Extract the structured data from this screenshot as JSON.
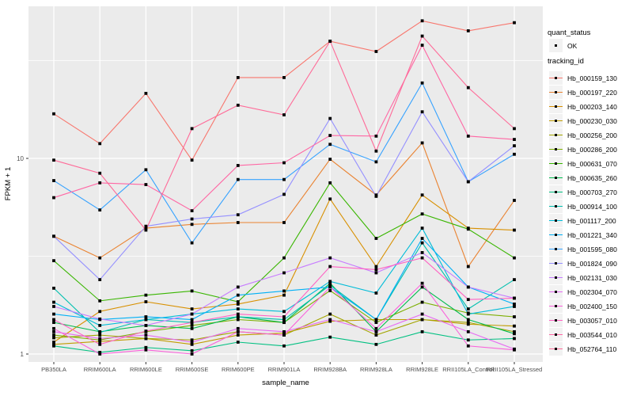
{
  "legend": {
    "quant_status_title": "quant_status",
    "quant_status_items": [
      {
        "label": "OK",
        "marker": "black-square-point"
      }
    ],
    "tracking_id_title": "tracking_id"
  },
  "colors": {
    "panel_bg": "#EBEBEB",
    "grid": "#FFFFFF",
    "legend_key_bg": "#F2F2F2",
    "tick_label": "#4D4D4D",
    "axis_title": "#000000",
    "point": "#000000"
  },
  "chart_data": {
    "type": "line",
    "title": "",
    "xlabel": "sample_name",
    "ylabel": "FPKM + 1",
    "y_scale": "log10",
    "y_ticks": [
      1,
      10
    ],
    "ylim": [
      0.93,
      60
    ],
    "grid": true,
    "legend_position": "right",
    "point_shape": "square",
    "categories": [
      "PB350LA",
      "RRIM600LA",
      "RRIM600LE",
      "RRIM600SE",
      "RRIM600PE",
      "RRIM901LA",
      "RRIM928BA",
      "RRIM928LA",
      "RRIM928LE",
      "RRII105LA_Control",
      "RRII105LA_Stressed"
    ],
    "series": [
      {
        "name": "Hb_000159_130",
        "color": "#F8766D",
        "values": [
          16.9,
          11.9,
          21.5,
          9.8,
          25.9,
          25.9,
          39.7,
          35.2,
          50.5,
          44.9,
          49.4
        ]
      },
      {
        "name": "Hb_000197_220",
        "color": "#EA8331",
        "values": [
          4.0,
          3.1,
          4.4,
          4.6,
          4.7,
          4.7,
          9.9,
          6.5,
          12.0,
          2.8,
          6.1
        ]
      },
      {
        "name": "Hb_000203_140",
        "color": "#D89000",
        "values": [
          1.15,
          1.65,
          1.85,
          1.7,
          1.8,
          2.0,
          6.2,
          2.8,
          6.5,
          4.4,
          4.3
        ]
      },
      {
        "name": "Hb_000230_030",
        "color": "#C09B00",
        "values": [
          1.12,
          1.16,
          1.2,
          1.12,
          1.25,
          1.28,
          1.47,
          1.5,
          1.5,
          1.42,
          1.39
        ]
      },
      {
        "name": "Hb_000256_200",
        "color": "#A3A500",
        "values": [
          1.21,
          1.25,
          1.2,
          1.18,
          1.3,
          1.25,
          1.6,
          1.25,
          1.5,
          1.45,
          1.3
        ]
      },
      {
        "name": "Hb_000286_200",
        "color": "#7CAE00",
        "values": [
          1.25,
          1.18,
          1.3,
          1.4,
          1.5,
          1.45,
          2.11,
          1.45,
          1.84,
          1.62,
          1.55
        ]
      },
      {
        "name": "Hb_000631_070",
        "color": "#39B600",
        "values": [
          3.0,
          1.87,
          2.0,
          2.1,
          1.85,
          3.1,
          7.5,
          3.9,
          5.2,
          4.35,
          3.1
        ]
      },
      {
        "name": "Hb_000635_260",
        "color": "#00BB4E",
        "values": [
          1.45,
          1.3,
          1.4,
          1.35,
          1.55,
          1.45,
          2.3,
          1.3,
          2.2,
          1.5,
          1.27
        ]
      },
      {
        "name": "Hb_000703_270",
        "color": "#00C081",
        "values": [
          1.1,
          1.02,
          1.08,
          1.04,
          1.15,
          1.1,
          1.22,
          1.12,
          1.3,
          1.18,
          1.2
        ]
      },
      {
        "name": "Hb_000914_100",
        "color": "#00C0AF",
        "values": [
          2.17,
          1.29,
          1.5,
          1.45,
          1.55,
          1.5,
          2.25,
          1.5,
          3.7,
          1.7,
          2.4
        ]
      },
      {
        "name": "Hb_001117_200",
        "color": "#00BCD8",
        "values": [
          1.84,
          1.4,
          1.5,
          1.6,
          1.7,
          1.65,
          2.35,
          2.05,
          4.4,
          1.6,
          1.75
        ]
      },
      {
        "name": "Hb_001221_340",
        "color": "#00B0F6",
        "values": [
          1.6,
          1.5,
          1.55,
          1.5,
          2.0,
          2.1,
          2.2,
          1.5,
          3.9,
          2.2,
          1.8
        ]
      },
      {
        "name": "Hb_001595_080",
        "color": "#35A2FF",
        "values": [
          7.7,
          5.45,
          8.75,
          3.7,
          7.8,
          7.8,
          11.8,
          9.6,
          24.3,
          7.6,
          10.5
        ]
      },
      {
        "name": "Hb_001824_090",
        "color": "#9590FF",
        "values": [
          4.0,
          2.4,
          4.5,
          4.9,
          5.15,
          6.55,
          16.0,
          6.4,
          17.3,
          7.6,
          11.6
        ]
      },
      {
        "name": "Hb_002131_030",
        "color": "#C77CFF",
        "values": [
          1.75,
          1.51,
          1.4,
          1.6,
          2.2,
          2.6,
          3.1,
          2.6,
          3.3,
          2.2,
          1.93
        ]
      },
      {
        "name": "Hb_002304_070",
        "color": "#E76BF3",
        "values": [
          1.3,
          1.2,
          1.25,
          1.15,
          1.35,
          1.3,
          1.5,
          1.3,
          1.6,
          1.3,
          1.06
        ]
      },
      {
        "name": "Hb_002400_150",
        "color": "#FA62DB",
        "values": [
          1.35,
          1.0,
          1.05,
          1.0,
          1.3,
          1.25,
          2.2,
          1.35,
          2.3,
          1.1,
          1.05
        ]
      },
      {
        "name": "Hb_003057_010",
        "color": "#FF61C3",
        "values": [
          1.5,
          1.12,
          1.31,
          1.45,
          1.6,
          1.55,
          2.8,
          2.7,
          3.1,
          1.9,
          1.93
        ]
      },
      {
        "name": "Hb_003544_010",
        "color": "#FF67A4",
        "values": [
          6.3,
          7.5,
          7.35,
          5.4,
          9.2,
          9.5,
          13.1,
          13.0,
          37.9,
          13.0,
          12.5
        ]
      },
      {
        "name": "Hb_052764_110",
        "color": "#FF6A98",
        "values": [
          9.8,
          8.4,
          4.3,
          14.2,
          18.7,
          16.7,
          39.7,
          10.9,
          42.2,
          23.0,
          14.2
        ]
      }
    ]
  }
}
